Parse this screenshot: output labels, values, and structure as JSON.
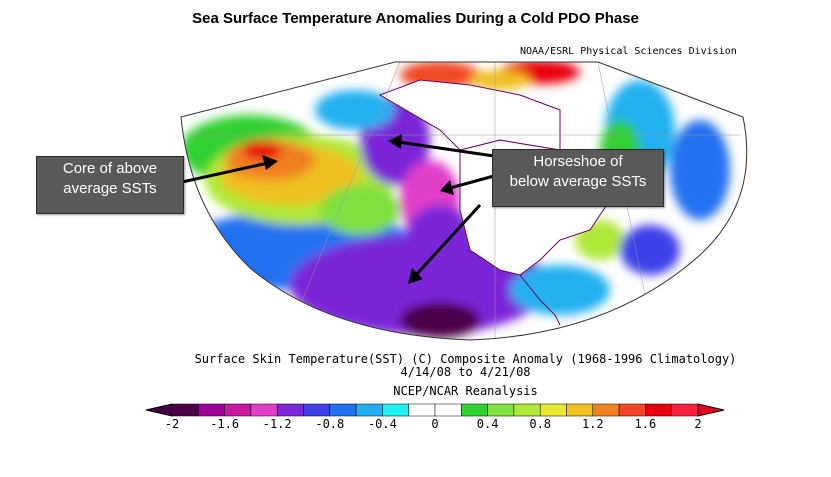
{
  "title": "Sea Surface Temperature Anomalies During a Cold PDO Phase",
  "credit": "NOAA/ESRL Physical Sciences Division",
  "callouts": {
    "left": {
      "line1": "Core of above",
      "line2": "average SSTs"
    },
    "right": {
      "line1": "Horseshoe of",
      "line2": "below average SSTs"
    }
  },
  "caption": {
    "line1": "Surface Skin Temperature(SST) (C) Composite Anomaly (1968-1996 Climatology)",
    "line2": "4/14/08  to 4/21/08",
    "line3": "NCEP/NCAR Reanalysis"
  },
  "colorbar": {
    "colors": [
      "#4a0046",
      "#a0009a",
      "#c8189e",
      "#e040c8",
      "#7a28d8",
      "#4040e8",
      "#2070f0",
      "#20b0f0",
      "#20f0f0",
      "#ffffff",
      "#ffffff",
      "#30d030",
      "#80e040",
      "#b0e838",
      "#e8e830",
      "#f0c020",
      "#f08020",
      "#f04828",
      "#e80010",
      "#ff2040"
    ],
    "low_color": "#4a0046",
    "high_color": "#e80020",
    "ticks": [
      "-2",
      "-1.6",
      "-1.2",
      "-0.8",
      "-0.4",
      "0",
      "0.4",
      "0.8",
      "1.2",
      "1.6",
      "2"
    ]
  },
  "colors": {
    "callout_bg": "#595959",
    "land_outline": "#6a0060"
  }
}
